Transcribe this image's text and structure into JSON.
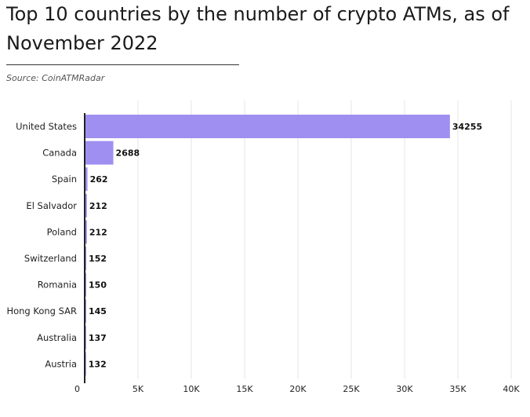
{
  "chart_data": {
    "type": "bar",
    "orientation": "horizontal",
    "title": "Top 10 countries by the number of crypto ATMs, as of November 2022",
    "source": "Source: CoinATMRadar",
    "categories": [
      "United States",
      "Canada",
      "Spain",
      "El Salvador",
      "Poland",
      "Switzerland",
      "Romania",
      "Hong Kong SAR",
      "Australia",
      "Austria"
    ],
    "values": [
      34255,
      2688,
      262,
      212,
      212,
      152,
      150,
      145,
      137,
      132
    ],
    "value_labels": [
      "34255",
      "2688",
      "262",
      "212",
      "212",
      "152",
      "150",
      "145",
      "137",
      "132"
    ],
    "xlim": [
      0,
      40000
    ],
    "x_ticks": [
      0,
      5000,
      10000,
      15000,
      20000,
      25000,
      30000,
      35000,
      40000
    ],
    "x_tick_labels": [
      "0",
      "5K",
      "10K",
      "15K",
      "20K",
      "25K",
      "30K",
      "35K",
      "40K"
    ],
    "grid": true,
    "bar_color": "#9f8ff0",
    "axis_color": "#222222",
    "grid_color": "#e6e6e6"
  }
}
